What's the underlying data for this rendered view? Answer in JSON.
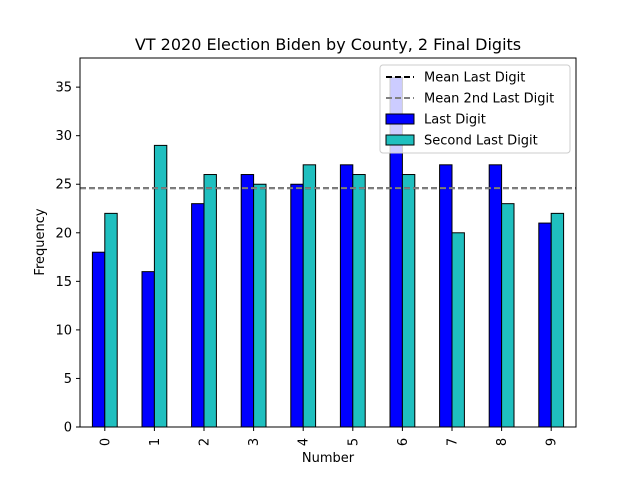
{
  "chart_data": {
    "type": "bar",
    "title": "VT 2020 Election Biden by County, 2 Final Digits",
    "xlabel": "Number",
    "ylabel": "Frequency",
    "categories": [
      "0",
      "1",
      "2",
      "3",
      "4",
      "5",
      "6",
      "7",
      "8",
      "9"
    ],
    "series": [
      {
        "name": "Last Digit",
        "color": "#0000ff",
        "values": [
          18,
          16,
          23,
          26,
          25,
          27,
          36,
          27,
          27,
          21
        ]
      },
      {
        "name": "Second Last Digit",
        "color": "#1fbfbf",
        "values": [
          22,
          29,
          26,
          25,
          27,
          26,
          26,
          20,
          23,
          22
        ]
      }
    ],
    "reference_lines": [
      {
        "name": "Mean Last Digit",
        "value": 24.6,
        "color": "#000000",
        "style": "dashed"
      },
      {
        "name": "Mean 2nd Last Digit",
        "value": 24.6,
        "color": "#808080",
        "style": "dashed"
      }
    ],
    "ylim": [
      0,
      38
    ],
    "yticks": [
      0,
      5,
      10,
      15,
      20,
      25,
      30,
      35
    ],
    "grid": false,
    "legend_position": "top-right"
  }
}
